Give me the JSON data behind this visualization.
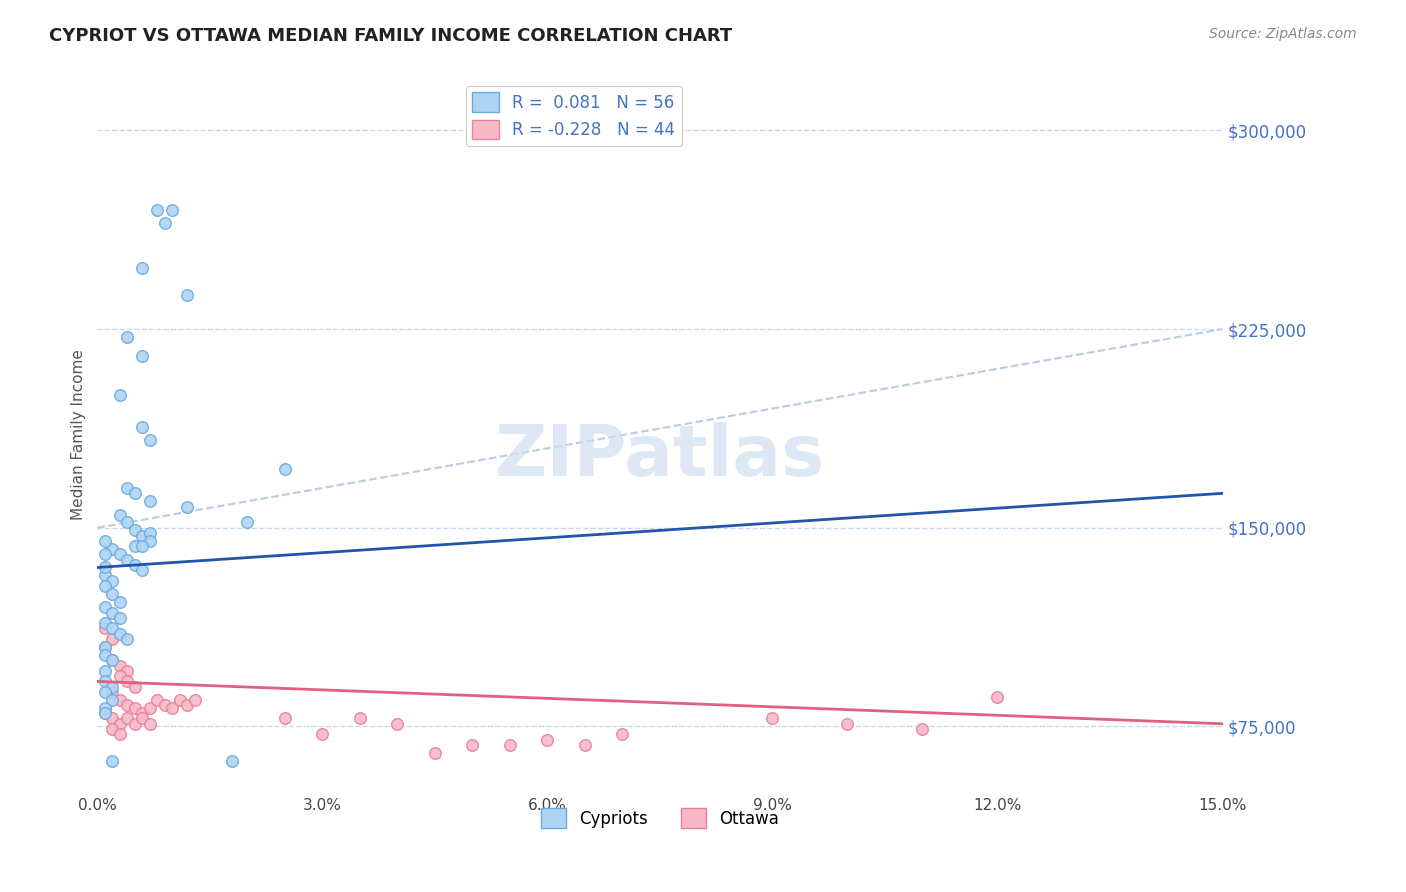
{
  "title": "CYPRIOT VS OTTAWA MEDIAN FAMILY INCOME CORRELATION CHART",
  "source": "Source: ZipAtlas.com",
  "ylabel": "Median Family Income",
  "xlim": [
    0.0,
    0.15
  ],
  "ylim": [
    50000,
    320000
  ],
  "yticks": [
    75000,
    150000,
    225000,
    300000
  ],
  "xticks": [
    0.0,
    0.03,
    0.06,
    0.09,
    0.12,
    0.15
  ],
  "xtick_labels": [
    "0.0%",
    "3.0%",
    "6.0%",
    "9.0%",
    "12.0%",
    "15.0%"
  ],
  "grid_color": "#c8d8ec",
  "background_color": "#ffffff",
  "cypriot_face": "#aed4f4",
  "cypriot_edge": "#6aaae0",
  "ottawa_face": "#f8b8c8",
  "ottawa_edge": "#e88098",
  "cypriot_R": 0.081,
  "cypriot_N": 56,
  "ottawa_R": -0.228,
  "ottawa_N": 44,
  "legend_color": "#4472c4",
  "title_color": "#222222",
  "dashed_line_color": "#b8cce4",
  "cypriot_trend_color": "#2255aa",
  "ottawa_trend_color": "#e06080",
  "cypriot_trend": [
    0.0,
    135000,
    0.15,
    163000
  ],
  "ottawa_trend": [
    0.0,
    92000,
    0.15,
    76000
  ],
  "dashed_line": [
    0.0,
    150000,
    0.15,
    225000
  ],
  "cypriot_dots": [
    [
      0.008,
      270000
    ],
    [
      0.009,
      265000
    ],
    [
      0.01,
      270000
    ],
    [
      0.006,
      248000
    ],
    [
      0.012,
      238000
    ],
    [
      0.004,
      222000
    ],
    [
      0.006,
      215000
    ],
    [
      0.003,
      200000
    ],
    [
      0.006,
      188000
    ],
    [
      0.007,
      183000
    ],
    [
      0.025,
      172000
    ],
    [
      0.004,
      165000
    ],
    [
      0.005,
      163000
    ],
    [
      0.007,
      160000
    ],
    [
      0.012,
      158000
    ],
    [
      0.003,
      155000
    ],
    [
      0.004,
      152000
    ],
    [
      0.005,
      149000
    ],
    [
      0.006,
      147000
    ],
    [
      0.007,
      148000
    ],
    [
      0.007,
      145000
    ],
    [
      0.005,
      143000
    ],
    [
      0.006,
      143000
    ],
    [
      0.002,
      142000
    ],
    [
      0.003,
      140000
    ],
    [
      0.004,
      138000
    ],
    [
      0.005,
      136000
    ],
    [
      0.006,
      134000
    ],
    [
      0.001,
      132000
    ],
    [
      0.002,
      130000
    ],
    [
      0.001,
      128000
    ],
    [
      0.002,
      125000
    ],
    [
      0.003,
      122000
    ],
    [
      0.001,
      120000
    ],
    [
      0.002,
      118000
    ],
    [
      0.003,
      116000
    ],
    [
      0.001,
      114000
    ],
    [
      0.002,
      112000
    ],
    [
      0.003,
      110000
    ],
    [
      0.004,
      108000
    ],
    [
      0.001,
      105000
    ],
    [
      0.001,
      102000
    ],
    [
      0.002,
      100000
    ],
    [
      0.001,
      96000
    ],
    [
      0.001,
      92000
    ],
    [
      0.002,
      90000
    ],
    [
      0.001,
      88000
    ],
    [
      0.002,
      85000
    ],
    [
      0.001,
      82000
    ],
    [
      0.001,
      80000
    ],
    [
      0.001,
      140000
    ],
    [
      0.001,
      135000
    ],
    [
      0.001,
      145000
    ],
    [
      0.02,
      152000
    ],
    [
      0.002,
      62000
    ],
    [
      0.018,
      62000
    ]
  ],
  "ottawa_dots": [
    [
      0.001,
      112000
    ],
    [
      0.002,
      108000
    ],
    [
      0.001,
      105000
    ],
    [
      0.002,
      100000
    ],
    [
      0.003,
      98000
    ],
    [
      0.004,
      96000
    ],
    [
      0.003,
      94000
    ],
    [
      0.004,
      92000
    ],
    [
      0.005,
      90000
    ],
    [
      0.002,
      88000
    ],
    [
      0.003,
      85000
    ],
    [
      0.004,
      83000
    ],
    [
      0.005,
      82000
    ],
    [
      0.006,
      80000
    ],
    [
      0.007,
      82000
    ],
    [
      0.008,
      85000
    ],
    [
      0.009,
      83000
    ],
    [
      0.01,
      82000
    ],
    [
      0.011,
      85000
    ],
    [
      0.012,
      83000
    ],
    [
      0.013,
      85000
    ],
    [
      0.001,
      80000
    ],
    [
      0.002,
      78000
    ],
    [
      0.003,
      76000
    ],
    [
      0.004,
      78000
    ],
    [
      0.005,
      76000
    ],
    [
      0.006,
      78000
    ],
    [
      0.007,
      76000
    ],
    [
      0.002,
      74000
    ],
    [
      0.003,
      72000
    ],
    [
      0.025,
      78000
    ],
    [
      0.03,
      72000
    ],
    [
      0.035,
      78000
    ],
    [
      0.04,
      76000
    ],
    [
      0.045,
      65000
    ],
    [
      0.05,
      68000
    ],
    [
      0.055,
      68000
    ],
    [
      0.06,
      70000
    ],
    [
      0.065,
      68000
    ],
    [
      0.07,
      72000
    ],
    [
      0.12,
      86000
    ],
    [
      0.09,
      78000
    ],
    [
      0.1,
      76000
    ],
    [
      0.11,
      74000
    ]
  ]
}
